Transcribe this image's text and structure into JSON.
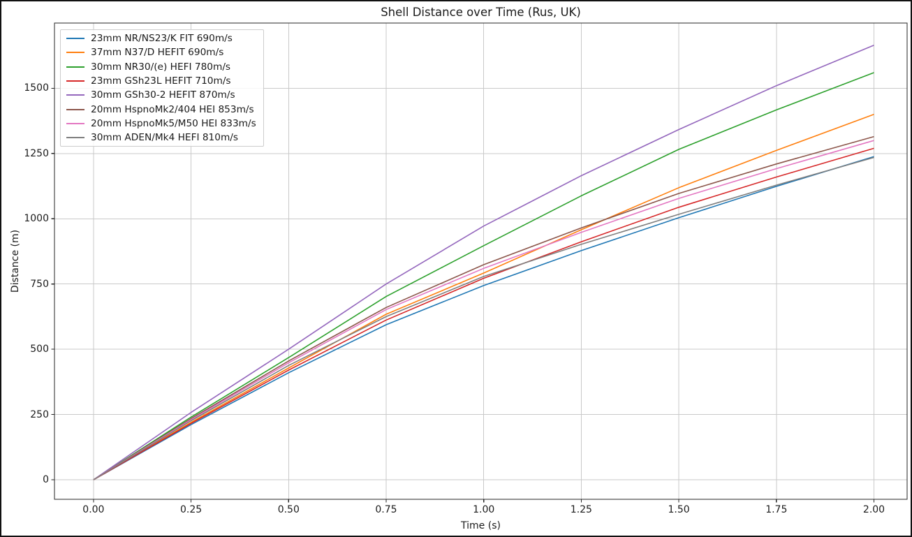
{
  "chart_data": {
    "type": "line",
    "title": "Shell Distance over Time (Rus, UK)",
    "xlabel": "Time (s)",
    "ylabel": "Distance (m)",
    "grid": true,
    "legend_position": "upper left",
    "xlim": [
      -0.1,
      2.085
    ],
    "ylim": [
      -75,
      1750
    ],
    "xticks": {
      "values": [
        0,
        0.25,
        0.5,
        0.75,
        1.0,
        1.25,
        1.5,
        1.75,
        2.0
      ],
      "labels": [
        "0.00",
        "0.25",
        "0.50",
        "0.75",
        "1.00",
        "1.25",
        "1.50",
        "1.75",
        "2.00"
      ]
    },
    "yticks": {
      "values": [
        0,
        250,
        500,
        750,
        1000,
        1250,
        1500
      ],
      "labels": [
        "0",
        "250",
        "500",
        "750",
        "1000",
        "1250",
        "1500"
      ]
    },
    "x": [
      0,
      0.25,
      0.5,
      0.75,
      1.0,
      1.25,
      1.5,
      1.75,
      2.0
    ],
    "series": [
      {
        "name": "23mm NR/NS23/K FIT 690m/s",
        "color": "#1f77b4",
        "values": [
          0,
          211,
          410,
          594,
          744,
          878,
          1004,
          1124,
          1238
        ]
      },
      {
        "name": "37mm N37/D HEFIT 690m/s",
        "color": "#ff7f0e",
        "values": [
          0,
          220,
          428,
          634,
          792,
          958,
          1119,
          1262,
          1400
        ]
      },
      {
        "name": "30mm NR30/(e) HEFI 780m/s",
        "color": "#2ca02c",
        "values": [
          0,
          240,
          468,
          702,
          897,
          1088,
          1266,
          1417,
          1560
        ]
      },
      {
        "name": "23mm GSh23L HEFIT 710m/s",
        "color": "#d62728",
        "values": [
          0,
          216,
          420,
          612,
          772,
          912,
          1044,
          1160,
          1270
        ]
      },
      {
        "name": "30mm GSh30-2 HEFIT 870m/s",
        "color": "#9467bd",
        "values": [
          0,
          258,
          500,
          750,
          972,
          1165,
          1342,
          1510,
          1665
        ]
      },
      {
        "name": "20mm HspnoMk2/404 HEI 853m/s",
        "color": "#8c564b",
        "values": [
          0,
          234,
          455,
          660,
          824,
          965,
          1097,
          1210,
          1315
        ]
      },
      {
        "name": "20mm HspnoMk5/M50 HEI 833m/s",
        "color": "#e377c2",
        "values": [
          0,
          230,
          448,
          652,
          810,
          948,
          1078,
          1192,
          1300
        ]
      },
      {
        "name": "30mm ADEN/Mk4 HEFI 810m/s",
        "color": "#7f7f7f",
        "values": [
          0,
          226,
          438,
          625,
          779,
          902,
          1017,
          1129,
          1235
        ]
      }
    ],
    "style": {
      "grid_color": "#c9c9c9",
      "spine_color": "#262626",
      "text_color": "#1a1a1a"
    }
  }
}
